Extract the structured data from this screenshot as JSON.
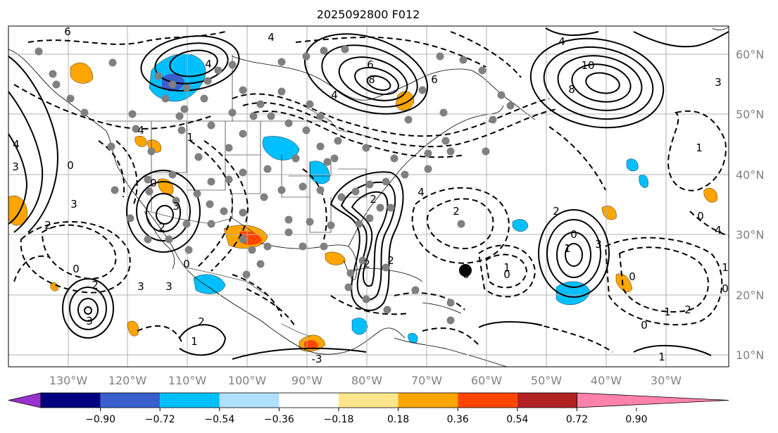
{
  "title": "2025092800 F012",
  "map": {
    "lon_labels": [
      "130°W",
      "120°W",
      "110°W",
      "100°W",
      "90°W",
      "80°W",
      "70°W",
      "60°W",
      "50°W",
      "40°W",
      "30°W"
    ],
    "lat_labels": [
      "60°N",
      "50°N",
      "40°N",
      "30°N",
      "20°N",
      "10°N"
    ],
    "contour_labels": [
      "6",
      "4",
      "4",
      "6",
      "8",
      "4",
      "6",
      "10",
      "8",
      "4",
      "3",
      "3",
      "0",
      "4",
      "3",
      "2",
      "4",
      "0",
      "3",
      "2",
      "0",
      "1",
      "2",
      "3",
      "3",
      "3",
      "0",
      "2",
      "2",
      "4",
      "2",
      "0",
      "1",
      "1",
      "3",
      "1",
      "1",
      "0",
      "2",
      "1",
      "0",
      "0",
      "1",
      "1",
      "2",
      "-3",
      "2",
      "0",
      "4",
      "0",
      "2",
      "0"
    ],
    "colors": {
      "dark_purple": "#9932cc",
      "navy": "#000080",
      "blue": "#3a5fcd",
      "deep_sky": "#00bfff",
      "light_sky": "#b0e0ff",
      "white": "#ffffff",
      "khaki": "#ffe68c",
      "orange": "#ffa500",
      "orange_red": "#ff4500",
      "firebrick": "#b22222",
      "pink": "#ff82ab"
    }
  },
  "colorbar": {
    "labels": [
      "−0.90",
      "−0.72",
      "−0.54",
      "−0.36",
      "−0.18",
      "0.18",
      "0.36",
      "0.54",
      "0.72",
      "0.90"
    ],
    "colors": [
      "#9932cc",
      "#000080",
      "#3a5fcd",
      "#00bfff",
      "#b0e0ff",
      "#ffffff",
      "#ffe68c",
      "#ffa500",
      "#ff4500",
      "#b22222",
      "#ff82ab"
    ]
  }
}
